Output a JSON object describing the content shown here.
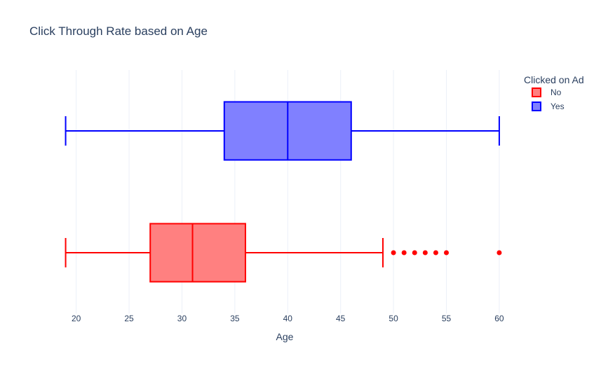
{
  "chart_data": {
    "type": "box",
    "title": "Click Through Rate based on Age",
    "xlabel": "Age",
    "ylabel": "",
    "xlim": [
      18.1,
      61
    ],
    "xticks": [
      20,
      25,
      30,
      35,
      40,
      45,
      50,
      55,
      60
    ],
    "grid": true,
    "legend": {
      "title": "Clicked on Ad",
      "position": "top-right"
    },
    "series": [
      {
        "name": "No",
        "color": "#ff0000",
        "fill": "#ff8080",
        "min": 19,
        "q1": 27,
        "median": 31,
        "q3": 36,
        "max": 49,
        "outliers": [
          50,
          51,
          52,
          53,
          54,
          55,
          60
        ]
      },
      {
        "name": "Yes",
        "color": "#0000ff",
        "fill": "#8080ff",
        "min": 19,
        "q1": 34,
        "median": 40,
        "q3": 46,
        "max": 60,
        "outliers": []
      }
    ]
  }
}
